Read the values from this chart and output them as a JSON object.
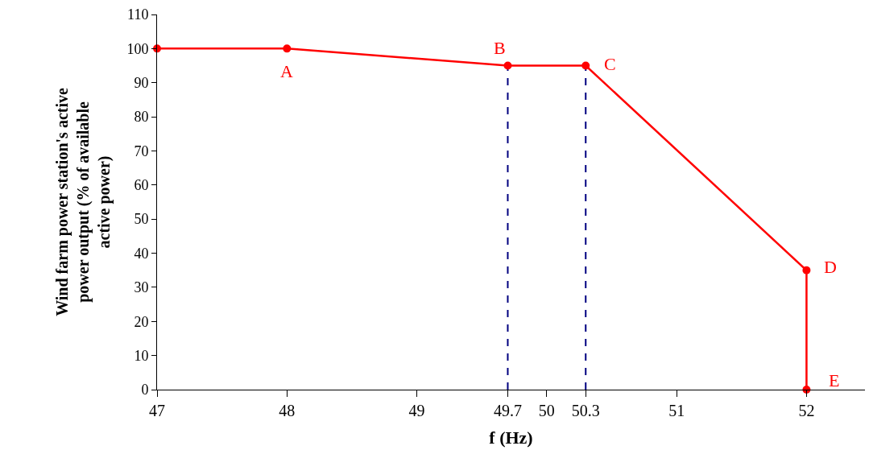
{
  "chart_data": {
    "type": "line",
    "xlabel": "f (Hz)",
    "ylabel": "Wind farm power station's active power output (% of available active power)",
    "x": [
      47,
      48,
      49.7,
      50.3,
      52,
      52
    ],
    "series": [
      {
        "color": "#ff0000",
        "values": [
          100,
          100,
          95,
          95,
          35,
          0
        ]
      }
    ],
    "xlim": [
      47,
      52.45
    ],
    "xticks": [
      47,
      48,
      49,
      49.7,
      50,
      50.3,
      51,
      52
    ],
    "ylim": [
      0,
      110
    ],
    "yticks": [
      0,
      10,
      20,
      30,
      40,
      50,
      60,
      70,
      80,
      90,
      100,
      110
    ],
    "marker": "circle",
    "line_style": "solid",
    "grid": false,
    "ref_lines": [
      {
        "axis": "x",
        "value": 49.7,
        "color": "#000080",
        "line_style": "dashed"
      },
      {
        "axis": "x",
        "value": 50.3,
        "color": "#000080",
        "line_style": "dashed"
      }
    ],
    "annotations": [
      {
        "text": "A",
        "x": 48,
        "y": 100
      },
      {
        "text": "B",
        "x": 49.7,
        "y": 95
      },
      {
        "text": "C",
        "x": 50.3,
        "y": 95
      },
      {
        "text": "D",
        "x": 52,
        "y": 35
      },
      {
        "text": "E",
        "x": 52,
        "y": 0
      }
    ]
  }
}
